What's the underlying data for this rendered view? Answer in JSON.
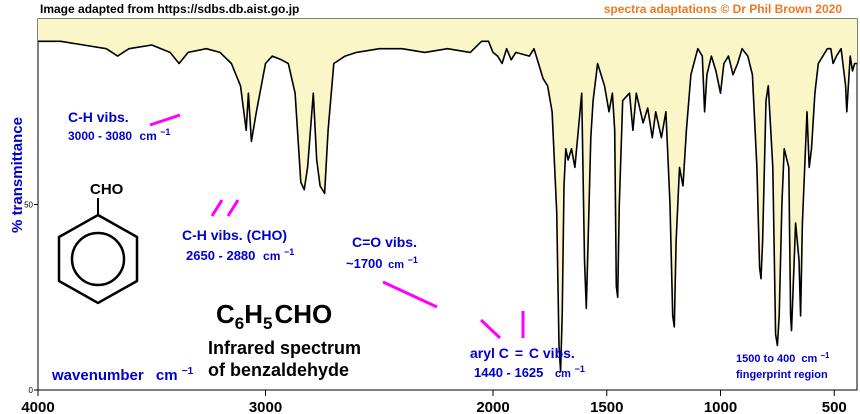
{
  "header": {
    "source": "Image adapted from https://sdbs.db.aist.go.jp",
    "credit": "spectra adaptations © Dr Phil Brown 2020"
  },
  "colors": {
    "fill": "#faf6c8",
    "trace": "#000000",
    "label_blue": "#0000cc",
    "pointer_magenta": "#ff00ff",
    "credit_orange": "#f07820"
  },
  "chart_data": {
    "type": "line",
    "xlabel": "wavenumber",
    "xlabel_unit": "cm",
    "xlabel_unit_exp": "−1",
    "ylabel": "% transmittance",
    "xlim": [
      4000,
      400
    ],
    "ylim": [
      0,
      100
    ],
    "x_reversed": true,
    "x_ticks": [
      4000,
      3000,
      2000,
      1500,
      1000,
      500
    ],
    "y_ticks": [
      0,
      50
    ],
    "fill_above_trace": true,
    "series": [
      {
        "points": [
          [
            4000,
            94
          ],
          [
            3900,
            94
          ],
          [
            3800,
            93
          ],
          [
            3700,
            92
          ],
          [
            3650,
            90
          ],
          [
            3600,
            92
          ],
          [
            3500,
            93
          ],
          [
            3420,
            91
          ],
          [
            3380,
            88
          ],
          [
            3340,
            91
          ],
          [
            3260,
            92
          ],
          [
            3200,
            91
          ],
          [
            3150,
            88
          ],
          [
            3110,
            82
          ],
          [
            3085,
            70
          ],
          [
            3075,
            80
          ],
          [
            3062,
            67
          ],
          [
            3040,
            75
          ],
          [
            3000,
            88
          ],
          [
            2970,
            90
          ],
          [
            2930,
            89
          ],
          [
            2900,
            88
          ],
          [
            2870,
            80
          ],
          [
            2845,
            56
          ],
          [
            2830,
            54
          ],
          [
            2815,
            60
          ],
          [
            2790,
            80
          ],
          [
            2775,
            62
          ],
          [
            2760,
            55
          ],
          [
            2740,
            53
          ],
          [
            2725,
            70
          ],
          [
            2700,
            88
          ],
          [
            2650,
            90
          ],
          [
            2600,
            91
          ],
          [
            2500,
            92
          ],
          [
            2400,
            92
          ],
          [
            2300,
            91
          ],
          [
            2200,
            92
          ],
          [
            2100,
            91
          ],
          [
            2050,
            94
          ],
          [
            2020,
            94
          ],
          [
            2000,
            91
          ],
          [
            1980,
            90
          ],
          [
            1960,
            88
          ],
          [
            1940,
            92
          ],
          [
            1920,
            89
          ],
          [
            1900,
            91
          ],
          [
            1840,
            90
          ],
          [
            1820,
            92
          ],
          [
            1800,
            88
          ],
          [
            1780,
            84
          ],
          [
            1760,
            82
          ],
          [
            1740,
            75
          ],
          [
            1720,
            48
          ],
          [
            1710,
            12
          ],
          [
            1703,
            5
          ],
          [
            1696,
            20
          ],
          [
            1688,
            55
          ],
          [
            1680,
            65
          ],
          [
            1670,
            62
          ],
          [
            1655,
            65
          ],
          [
            1640,
            60
          ],
          [
            1625,
            70
          ],
          [
            1610,
            80
          ],
          [
            1598,
            35
          ],
          [
            1590,
            22
          ],
          [
            1582,
            40
          ],
          [
            1570,
            68
          ],
          [
            1560,
            78
          ],
          [
            1540,
            88
          ],
          [
            1510,
            82
          ],
          [
            1490,
            75
          ],
          [
            1475,
            80
          ],
          [
            1465,
            70
          ],
          [
            1458,
            28
          ],
          [
            1452,
            25
          ],
          [
            1445,
            50
          ],
          [
            1430,
            78
          ],
          [
            1400,
            80
          ],
          [
            1385,
            70
          ],
          [
            1370,
            80
          ],
          [
            1340,
            72
          ],
          [
            1320,
            76
          ],
          [
            1300,
            68
          ],
          [
            1285,
            75
          ],
          [
            1260,
            68
          ],
          [
            1240,
            75
          ],
          [
            1222,
            50
          ],
          [
            1210,
            20
          ],
          [
            1203,
            17
          ],
          [
            1195,
            40
          ],
          [
            1180,
            60
          ],
          [
            1165,
            55
          ],
          [
            1150,
            70
          ],
          [
            1130,
            85
          ],
          [
            1100,
            92
          ],
          [
            1080,
            90
          ],
          [
            1070,
            75
          ],
          [
            1060,
            85
          ],
          [
            1040,
            90
          ],
          [
            1020,
            86
          ],
          [
            1000,
            80
          ],
          [
            985,
            88
          ],
          [
            965,
            90
          ],
          [
            945,
            85
          ],
          [
            925,
            88
          ],
          [
            905,
            92
          ],
          [
            880,
            90
          ],
          [
            860,
            85
          ],
          [
            840,
            60
          ],
          [
            828,
            33
          ],
          [
            822,
            30
          ],
          [
            815,
            40
          ],
          [
            800,
            78
          ],
          [
            790,
            82
          ],
          [
            770,
            60
          ],
          [
            758,
            15
          ],
          [
            750,
            12
          ],
          [
            742,
            20
          ],
          [
            730,
            50
          ],
          [
            720,
            65
          ],
          [
            700,
            60
          ],
          [
            692,
            20
          ],
          [
            688,
            16
          ],
          [
            682,
            25
          ],
          [
            670,
            45
          ],
          [
            655,
            35
          ],
          [
            648,
            20
          ],
          [
            640,
            45
          ],
          [
            620,
            75
          ],
          [
            610,
            60
          ],
          [
            600,
            65
          ],
          [
            585,
            80
          ],
          [
            570,
            88
          ],
          [
            550,
            90
          ],
          [
            530,
            92
          ],
          [
            515,
            92
          ],
          [
            505,
            88
          ],
          [
            490,
            90
          ],
          [
            470,
            92
          ],
          [
            450,
            82
          ],
          [
            445,
            75
          ],
          [
            440,
            80
          ],
          [
            430,
            90
          ],
          [
            420,
            86
          ],
          [
            410,
            88
          ],
          [
            400,
            88
          ]
        ]
      }
    ]
  },
  "annotations": {
    "ch_aromatic": {
      "title": "C-H vibs.",
      "range": "3000 - 3080",
      "unit": "cm",
      "exp": "−1"
    },
    "ch_aldehyde": {
      "title": "C-H vibs. (CHO)",
      "range": "2650 - 2880",
      "unit": "cm",
      "exp": "−1"
    },
    "co": {
      "title": "C=O vibs.",
      "range": "~1700",
      "unit": "cm",
      "exp": "−1"
    },
    "aryl": {
      "prefix": "aryl C",
      "bond": "=",
      "suffix": "C vibs.",
      "range": "1440 - 1625",
      "unit": "cm",
      "exp": "−1"
    },
    "fingerprint": {
      "range": "1500 to 400",
      "unit": "cm",
      "exp": "−1",
      "label": "fingerprint region"
    }
  },
  "molecule": {
    "group_label": "CHO",
    "formula": {
      "c": "C",
      "c_sub": "6",
      "h": "H",
      "h_sub": "5",
      "rest": "CHO"
    },
    "caption_line1": "Infrared spectrum",
    "caption_line2": "of benzaldehyde"
  }
}
